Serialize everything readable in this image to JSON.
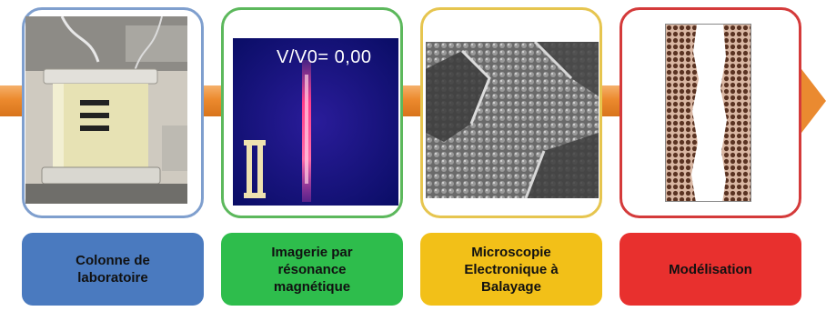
{
  "colors": {
    "arrow": "#ec8a2e",
    "stage1": "#4a7abf",
    "stage2": "#2ebd4c",
    "stage3": "#f2c018",
    "stage4": "#e8302e"
  },
  "stages": [
    {
      "label": "Colonne de\nlaboratoire",
      "image": "laboratory-column-photo"
    },
    {
      "label": "Imagerie par\nrésonance\nmagnétique",
      "image": "mri-scan",
      "readout": "V/V0= 0,00"
    },
    {
      "label": "Microscopie\nElectronique à\nBalayage",
      "image": "sem-micrograph"
    },
    {
      "label": "Modélisation",
      "image": "pore-model"
    }
  ]
}
